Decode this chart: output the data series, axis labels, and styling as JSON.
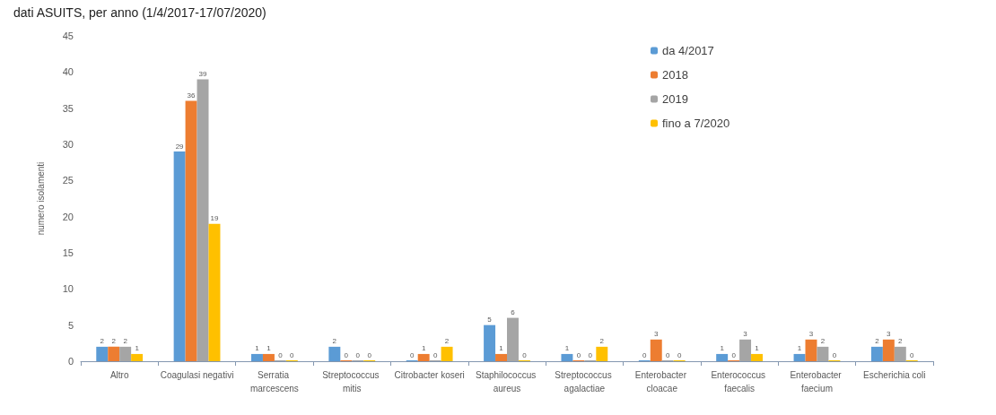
{
  "chart_data": {
    "type": "bar",
    "title": "dati ASUITS, per anno (1/4/2017-17/07/2020)",
    "ylabel": "numero isolamenti",
    "categories": [
      "Altro",
      "Coagulasi negativi",
      "Serratia marcescens",
      "Streptococcus mitis",
      "Citrobacter koseri",
      "Staphilococcus aureus",
      "Streptococcus agalactiae",
      "Enterobacter cloacae",
      "Enterococcus faecalis",
      "Enterobacter faecium",
      "Escherichia coli"
    ],
    "series": [
      {
        "name": "da 4/2017",
        "color": "#5b9bd5",
        "values": [
          2,
          29,
          1,
          2,
          0,
          5,
          1,
          0,
          1,
          1,
          2
        ]
      },
      {
        "name": "2018",
        "color": "#ed7d31",
        "values": [
          2,
          36,
          1,
          0,
          1,
          1,
          0,
          3,
          0,
          3,
          3
        ]
      },
      {
        "name": "2019",
        "color": "#a5a5a5",
        "values": [
          2,
          39,
          0,
          0,
          0,
          6,
          0,
          0,
          3,
          2,
          2
        ]
      },
      {
        "name": "fino a 7/2020",
        "color": "#ffc000",
        "values": [
          1,
          19,
          0,
          0,
          2,
          0,
          2,
          0,
          1,
          0,
          0
        ]
      }
    ],
    "ylim": [
      0,
      45
    ],
    "yticks": [
      0,
      5,
      10,
      15,
      20,
      25,
      30,
      35,
      40,
      45
    ],
    "grid": false,
    "legend": "top right",
    "data_labels": true
  }
}
